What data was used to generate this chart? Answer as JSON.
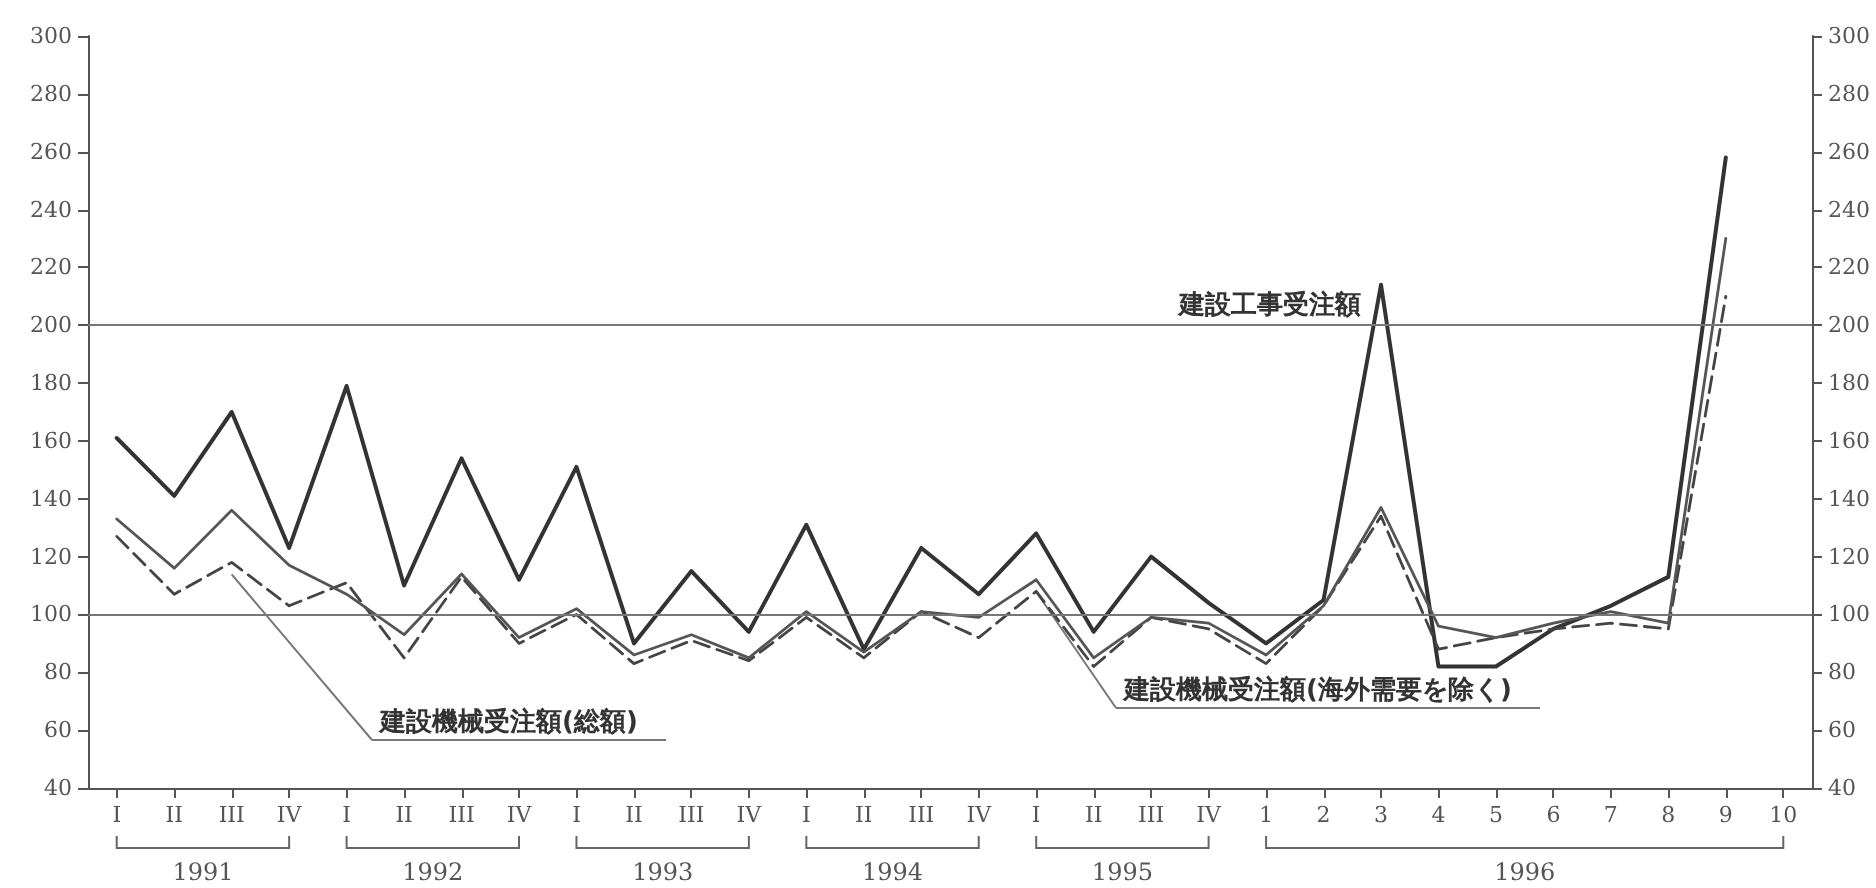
{
  "chart_data": {
    "type": "line",
    "categories": [
      "I",
      "II",
      "III",
      "IV",
      "I",
      "II",
      "III",
      "IV",
      "I",
      "II",
      "III",
      "IV",
      "I",
      "II",
      "III",
      "IV",
      "I",
      "II",
      "III",
      "IV",
      "1",
      "2",
      "3",
      "4",
      "5",
      "6",
      "7",
      "8",
      "9",
      "10"
    ],
    "series": [
      {
        "name": "建設工事受注額",
        "color": "#333333",
        "line_style": "solid",
        "values": [
          161,
          141,
          170,
          123,
          179,
          110,
          154,
          112,
          151,
          90,
          115,
          94,
          131,
          88,
          123,
          107,
          128,
          94,
          120,
          104,
          90,
          105,
          214,
          82,
          82,
          95,
          103,
          113,
          258,
          null
        ]
      },
      {
        "name": "建設機械受注額(総額)",
        "color": "#444444",
        "line_style": "dashed",
        "values": [
          127,
          107,
          118,
          103,
          111,
          85,
          113,
          90,
          100,
          83,
          91,
          84,
          99,
          85,
          101,
          92,
          108,
          82,
          99,
          95,
          83,
          103,
          134,
          88,
          92,
          95,
          97,
          95,
          210,
          null
        ]
      },
      {
        "name": "建設機械受注額(海外需要を除く)",
        "color": "#555555",
        "line_style": "solid",
        "values": [
          133,
          116,
          136,
          117,
          107,
          93,
          114,
          92,
          102,
          86,
          93,
          85,
          101,
          87,
          101,
          99,
          112,
          85,
          99,
          97,
          86,
          103,
          137,
          96,
          92,
          97,
          101,
          97,
          230,
          null
        ]
      }
    ],
    "ylim": [
      40,
      300
    ],
    "yticks": [
      40,
      60,
      80,
      100,
      120,
      140,
      160,
      180,
      200,
      220,
      240,
      260,
      280,
      300
    ],
    "y2lim": [
      40,
      300
    ],
    "y2ticks": [
      40,
      60,
      80,
      100,
      120,
      140,
      160,
      180,
      200,
      220,
      240,
      260,
      280,
      300
    ],
    "ref_lines": [
      {
        "axis": "y",
        "value": 100
      },
      {
        "axis": "y",
        "value": 200
      }
    ],
    "annotations": [
      "1991",
      "1992",
      "1993",
      "1994",
      "1995",
      "1996"
    ],
    "grid": false,
    "legend": false,
    "marker": "none"
  }
}
